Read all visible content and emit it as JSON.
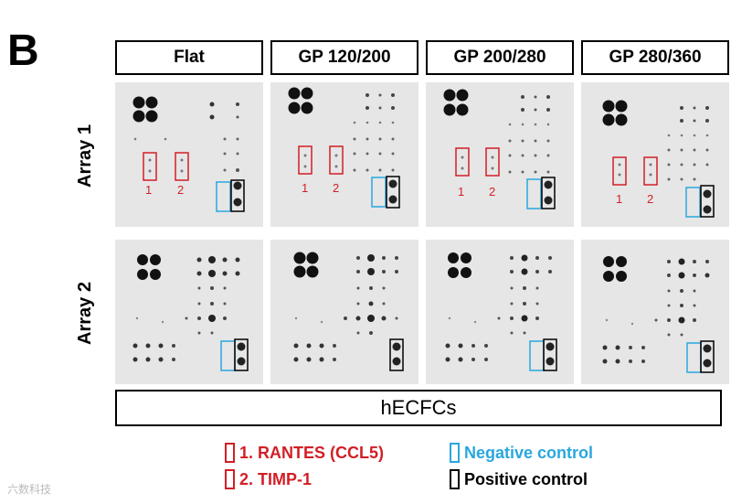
{
  "panel_letter": "B",
  "columns": [
    "Flat",
    "GP 120/200",
    "GP 200/280",
    "GP 280/360"
  ],
  "rows": [
    "Array 1",
    "Array 2"
  ],
  "blot_labels": [
    "1",
    "2"
  ],
  "cell_type": "hECFCs",
  "legend": [
    {
      "label": "1. RANTES (CCL5)",
      "color": "#d21f26"
    },
    {
      "label": "2. TIMP-1",
      "color": "#d21f26"
    },
    {
      "label": "Negative control",
      "color": "#29a7df"
    },
    {
      "label": "Positive control",
      "color": "#000000"
    }
  ],
  "watermark": "六数科技"
}
